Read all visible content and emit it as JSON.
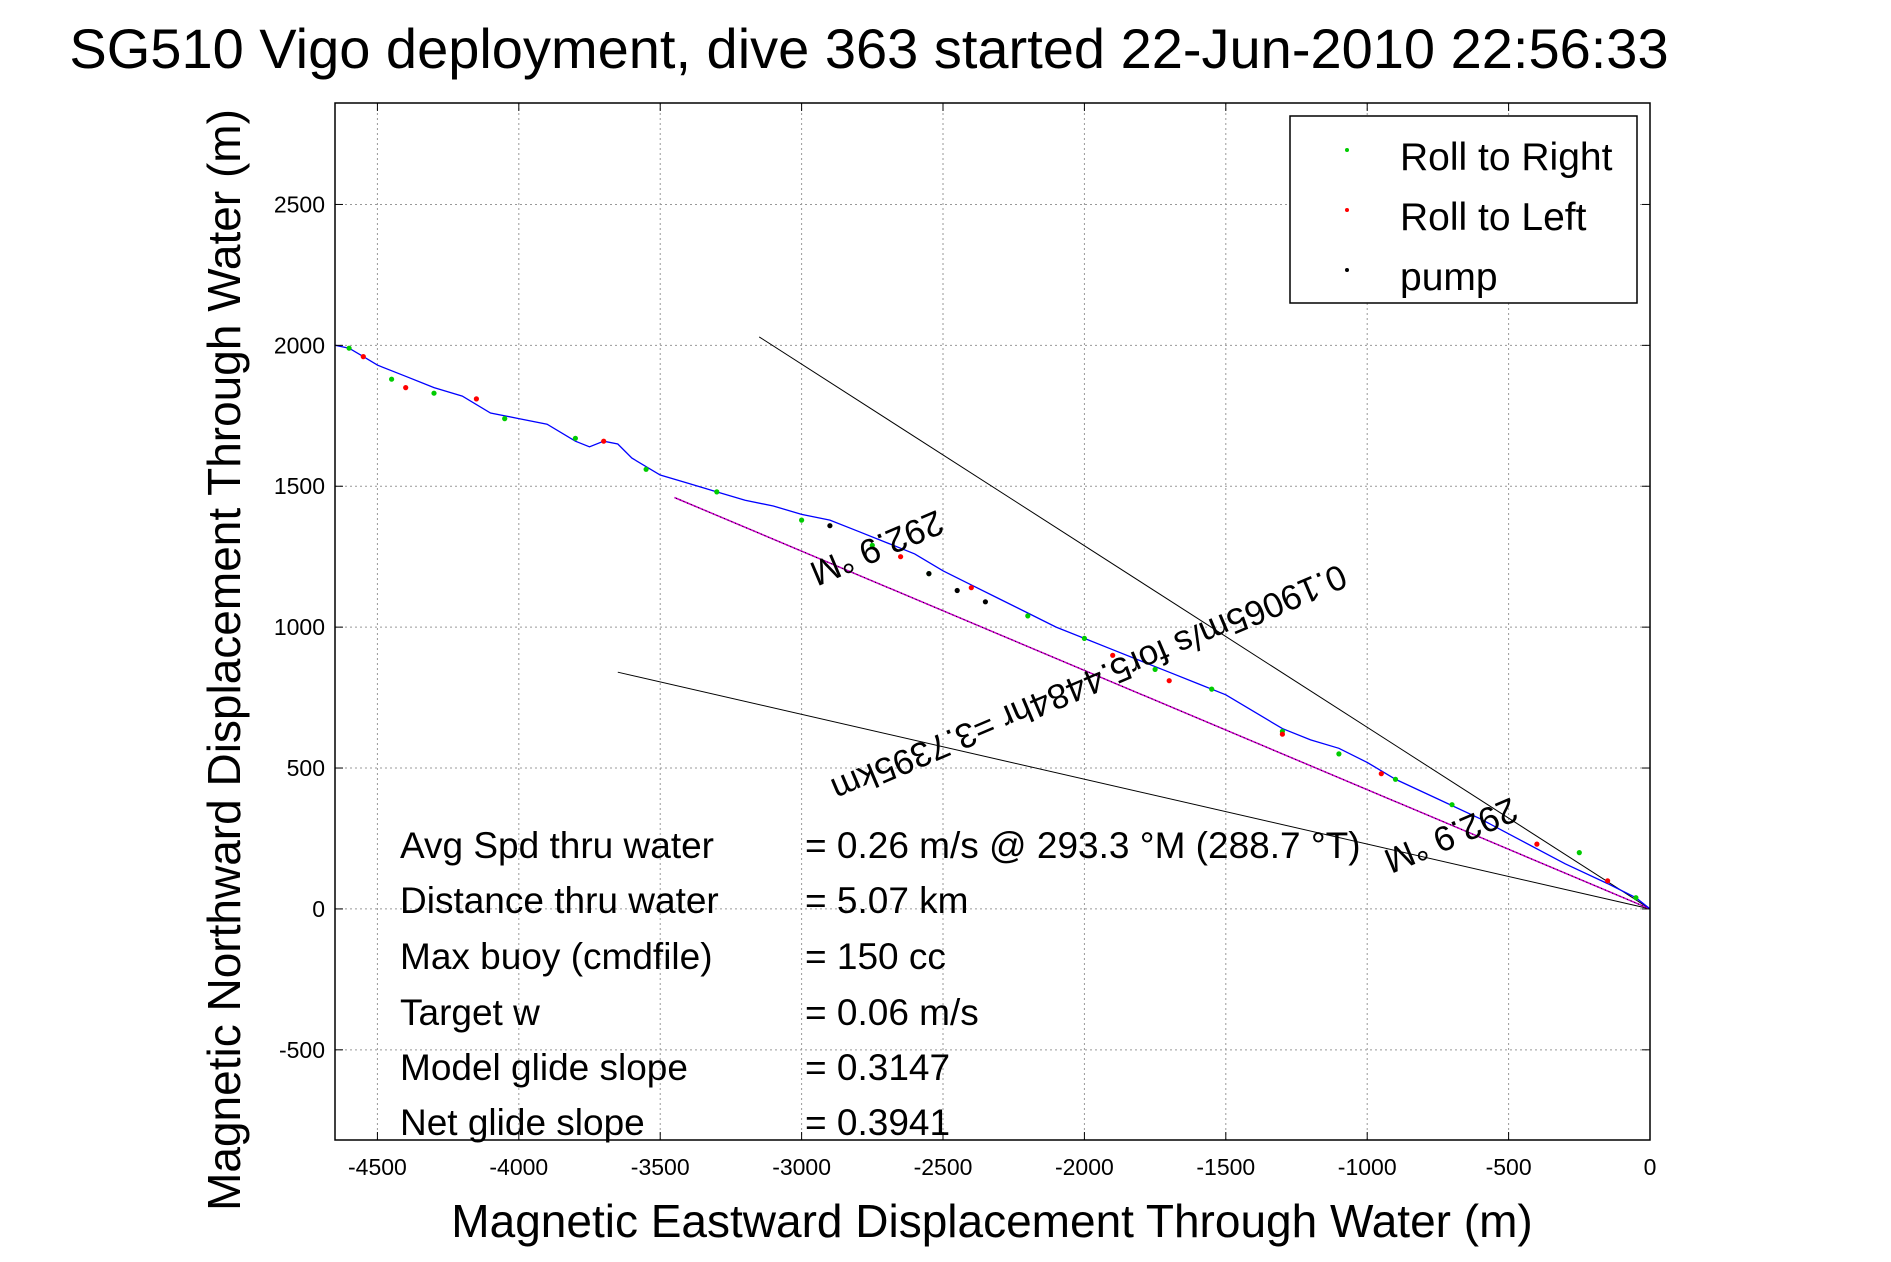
{
  "chart_data": {
    "type": "line",
    "title": "SG510 Vigo deployment, dive 363 started 22-Jun-2010 22:56:33",
    "xlabel": "Magnetic Eastward Displacement Through Water (m)",
    "ylabel": "Magnetic Northward Displacement Through Water (m)",
    "xlim": [
      -4650,
      0
    ],
    "ylim": [
      -820,
      2860
    ],
    "xticks": [
      -4500,
      -4000,
      -3500,
      -3000,
      -2500,
      -2000,
      -1500,
      -1000,
      -500,
      0
    ],
    "yticks": [
      -500,
      0,
      500,
      1000,
      1500,
      2000,
      2500
    ],
    "xtick_labels": [
      "-4500",
      "-4000",
      "-3500",
      "-3000",
      "-2500",
      "-2000",
      "-1500",
      "-1000",
      "-500",
      "0"
    ],
    "ytick_labels": [
      "-500",
      "0",
      "500",
      "1000",
      "1500",
      "2000",
      "2500"
    ],
    "grid": true,
    "legend_position": "top-right",
    "colors": {
      "track": "#0000ff",
      "roll_right": "#00cc00",
      "roll_left": "#ff0000",
      "pump": "#000000",
      "average_line": "#cc00cc",
      "bound_lines": "#000000",
      "grid": "#999999"
    },
    "legend": [
      {
        "name": "Roll to Right",
        "color": "#00cc00",
        "marker": "dot"
      },
      {
        "name": "Roll to Left",
        "color": "#ff0000",
        "marker": "dot"
      },
      {
        "name": "pump",
        "color": "#000000",
        "marker": "dot"
      }
    ],
    "series": [
      {
        "name": "track",
        "x": [
          0,
          -50,
          -150,
          -300,
          -450,
          -600,
          -750,
          -900,
          -1000,
          -1100,
          -1200,
          -1300,
          -1400,
          -1500,
          -1600,
          -1700,
          -1800,
          -1900,
          -2000,
          -2100,
          -2200,
          -2300,
          -2400,
          -2500,
          -2600,
          -2700,
          -2800,
          -2900,
          -3000,
          -3100,
          -3200,
          -3300,
          -3400,
          -3500,
          -3600,
          -3650,
          -3700,
          -3750,
          -3800,
          -3900,
          -4000,
          -4100,
          -4200,
          -4300,
          -4400,
          -4500,
          -4550,
          -4600,
          -4650
        ],
        "y": [
          0,
          40,
          90,
          160,
          240,
          320,
          390,
          460,
          520,
          570,
          600,
          640,
          700,
          760,
          800,
          840,
          880,
          920,
          960,
          1000,
          1050,
          1100,
          1150,
          1200,
          1260,
          1300,
          1340,
          1380,
          1400,
          1430,
          1450,
          1480,
          1510,
          1540,
          1600,
          1650,
          1660,
          1640,
          1660,
          1720,
          1740,
          1760,
          1820,
          1850,
          1890,
          1930,
          1960,
          1990,
          2000
        ]
      },
      {
        "name": "Roll to Right",
        "x": [
          -50,
          -250,
          -700,
          -900,
          -1100,
          -1300,
          -1550,
          -1750,
          -2000,
          -2200,
          -2550,
          -2750,
          -3000,
          -3300,
          -3550,
          -3800,
          -4050,
          -4300,
          -4450,
          -4600
        ],
        "y": [
          40,
          200,
          370,
          460,
          550,
          630,
          780,
          850,
          960,
          1040,
          1190,
          1290,
          1380,
          1480,
          1560,
          1670,
          1740,
          1830,
          1880,
          1990
        ]
      },
      {
        "name": "Roll to Left",
        "x": [
          -150,
          -400,
          -950,
          -1300,
          -1700,
          -1900,
          -2400,
          -2650,
          -3700,
          -4150,
          -4400,
          -4550
        ],
        "y": [
          100,
          230,
          480,
          620,
          810,
          900,
          1140,
          1250,
          1660,
          1810,
          1850,
          1960
        ]
      },
      {
        "name": "pump",
        "x": [
          -2350,
          -2450,
          -2550,
          -2900
        ],
        "y": [
          1090,
          1130,
          1190,
          1360
        ]
      },
      {
        "name": "average-track-line",
        "x": [
          0,
          -3450
        ],
        "y": [
          0,
          1460
        ]
      },
      {
        "name": "bound-line-upper",
        "x": [
          0,
          -3150
        ],
        "y": [
          0,
          2030
        ]
      },
      {
        "name": "bound-line-lower",
        "x": [
          0,
          -3650
        ],
        "y": [
          0,
          840
        ]
      }
    ],
    "annotations": [
      {
        "text": "292.9 °M",
        "x": -2750,
        "y": 1320,
        "angle_deg": 157
      },
      {
        "text": "0.19065m/s for5.4484hr =3.7395km",
        "x": -2000,
        "y": 840,
        "angle_deg": 157
      },
      {
        "text": "292.9 °M",
        "x": -720,
        "y": 300,
        "angle_deg": 157
      }
    ],
    "stats": [
      {
        "label": "Avg Spd thru water",
        "value": "=  0.26 m/s @ 293.3 °M (288.7 °T)"
      },
      {
        "label": "Distance thru water",
        "value": "=  5.07 km"
      },
      {
        "label": "Max buoy (cmdfile)",
        "value": "= 150 cc"
      },
      {
        "label": "Target w",
        "value": "= 0.06 m/s"
      },
      {
        "label": "Model glide slope",
        "value": "= 0.3147"
      },
      {
        "label": "Net glide slope",
        "value": "= 0.3941"
      }
    ]
  }
}
